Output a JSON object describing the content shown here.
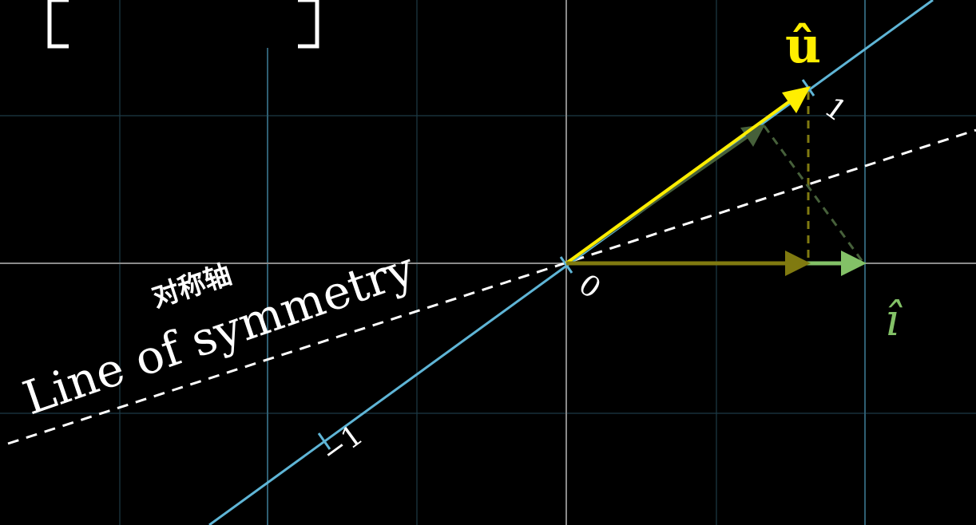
{
  "scene": {
    "line_of_symmetry_label": "Line of symmetry",
    "line_of_symmetry_label_zh": "对称轴",
    "number_line_ticks": [
      {
        "name": "tick-label-zero",
        "value": 0,
        "label": "0"
      },
      {
        "name": "tick-label-one",
        "value": 1,
        "label": "1"
      },
      {
        "name": "tick-label-minus-one",
        "value": -1,
        "label": "−1"
      }
    ],
    "u_hat_label": "û",
    "i_hat_label": "î",
    "matrix_bracket_left": "[",
    "matrix_bracket_right": "]"
  },
  "colors": {
    "background": "#000000",
    "grid": "#1d3b47",
    "grid_bold": "#3a6f86",
    "axis": "#888888",
    "number_line": "#5fb5d6",
    "u_hat": "#ffee00",
    "i_hat": "#83c167",
    "projection": "#807a10",
    "dark_green": "#46603a",
    "dashed": "#ffffff"
  }
}
